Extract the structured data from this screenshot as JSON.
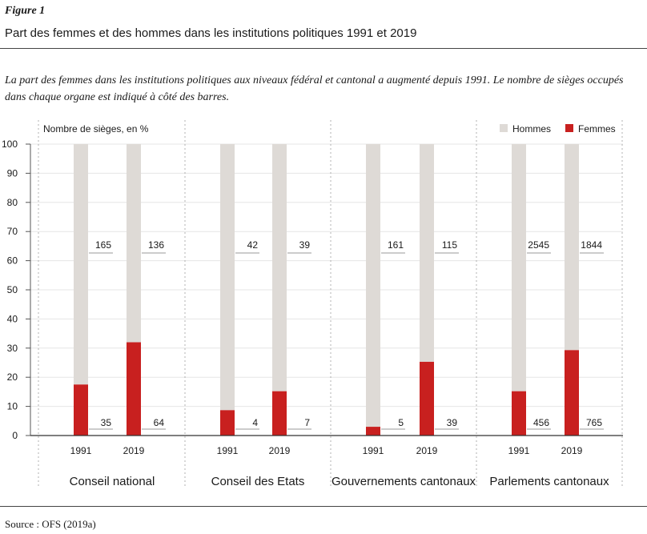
{
  "figure": {
    "label": "Figure 1",
    "title": "Part des femmes et des hommes dans les institutions politiques 1991 et 2019",
    "description": "La part des femmes dans les institutions politiques aux niveaux fédéral et cantonal a augmenté depuis 1991. Le nombre de sièges occupés dans chaque organe est indiqué à côté des barres.",
    "source": "Source : OFS (2019a)"
  },
  "chart_data": {
    "type": "bar",
    "stacked": true,
    "ylabel": "Nombre de sièges, en %",
    "ylim": [
      0,
      100
    ],
    "yticks": [
      0,
      10,
      20,
      30,
      40,
      50,
      60,
      70,
      80,
      90,
      100
    ],
    "legend_position": "top-right",
    "groups": [
      "Conseil national",
      "Conseil des Etats",
      "Gouvernements cantonaux",
      "Parlements cantonaux"
    ],
    "years": [
      "1991",
      "2019"
    ],
    "series": [
      {
        "name": "Hommes",
        "color": "#dedad6"
      },
      {
        "name": "Femmes",
        "color": "#c8201f"
      }
    ],
    "bars": [
      {
        "group": "Conseil national",
        "year": "1991",
        "femmes_pct": 17.5,
        "hommes_seats": "165",
        "femmes_seats": "35"
      },
      {
        "group": "Conseil national",
        "year": "2019",
        "femmes_pct": 32,
        "hommes_seats": "136",
        "femmes_seats": "64"
      },
      {
        "group": "Conseil des Etats",
        "year": "1991",
        "femmes_pct": 8.7,
        "hommes_seats": "42",
        "femmes_seats": "4"
      },
      {
        "group": "Conseil des Etats",
        "year": "2019",
        "femmes_pct": 15.2,
        "hommes_seats": "39",
        "femmes_seats": "7"
      },
      {
        "group": "Gouvernements cantonaux",
        "year": "1991",
        "femmes_pct": 3.0,
        "hommes_seats": "161",
        "femmes_seats": "5"
      },
      {
        "group": "Gouvernements cantonaux",
        "year": "2019",
        "femmes_pct": 25.3,
        "hommes_seats": "115",
        "femmes_seats": "39"
      },
      {
        "group": "Parlements cantonaux",
        "year": "1991",
        "femmes_pct": 15.2,
        "hommes_seats": "2545",
        "femmes_seats": "456"
      },
      {
        "group": "Parlements cantonaux",
        "year": "2019",
        "femmes_pct": 29.3,
        "hommes_seats": "1844",
        "femmes_seats": "765"
      }
    ]
  }
}
